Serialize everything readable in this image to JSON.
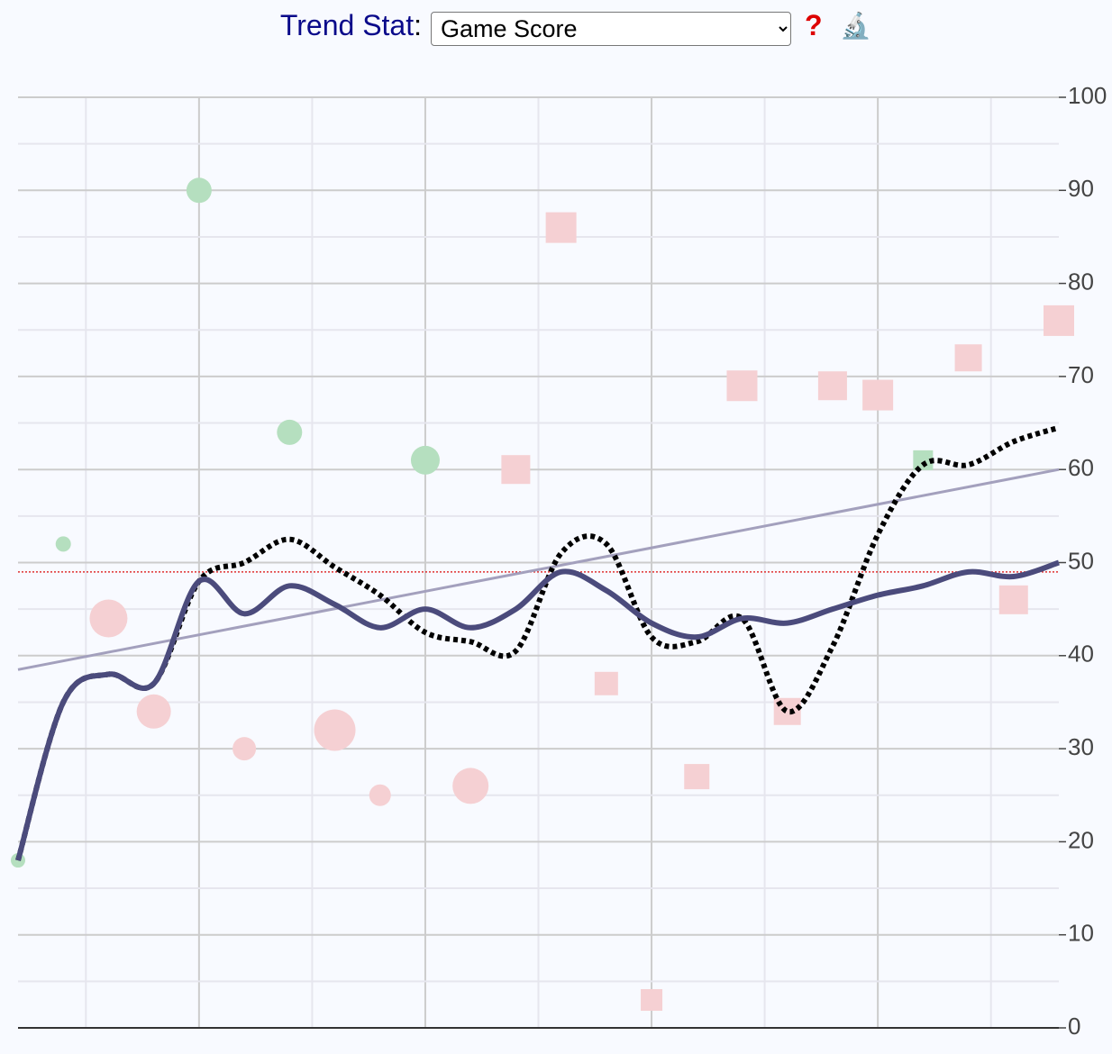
{
  "header": {
    "label": "Trend Stat",
    "colon": ":",
    "select": "Game Score",
    "help": "?",
    "icon": "🔬"
  },
  "chart_data": {
    "type": "scatter",
    "x": [
      1,
      2,
      3,
      4,
      5,
      6,
      7,
      8,
      9,
      10,
      11,
      12,
      13,
      14,
      15,
      16,
      17,
      18,
      19,
      20,
      21,
      22,
      23,
      24
    ],
    "xlim": [
      1,
      24
    ],
    "values": [
      18,
      52,
      44,
      34,
      90,
      30,
      64,
      32,
      25,
      61,
      26,
      60,
      86,
      37,
      3,
      27,
      69,
      34,
      69,
      68,
      61,
      72,
      46,
      76
    ],
    "sizes": [
      8,
      8.5,
      21,
      19,
      14,
      13,
      14,
      23,
      12,
      16,
      20,
      16,
      17,
      13,
      12,
      14,
      17,
      15,
      16,
      17,
      11,
      15,
      16,
      17
    ],
    "shapes": [
      "circle",
      "circle",
      "circle",
      "circle",
      "circle",
      "circle",
      "circle",
      "circle",
      "circle",
      "circle",
      "circle",
      "square",
      "square",
      "square",
      "square",
      "square",
      "square",
      "square",
      "square",
      "square",
      "square",
      "square",
      "square",
      "square"
    ],
    "colors": [
      "#b5dfbf",
      "#b5dfbf",
      "#f5d0d3",
      "#f5d0d3",
      "#b5dfbf",
      "#f5d0d3",
      "#b5dfbf",
      "#f5d0d3",
      "#f5d0d3",
      "#b5dfbf",
      "#f5d0d3",
      "#f5d0d3",
      "#f5d0d3",
      "#f5d0d3",
      "#f5d0d3",
      "#f5d0d3",
      "#f5d0d3",
      "#f5d0d3",
      "#f5d0d3",
      "#f5d0d3",
      "#b5dfbf",
      "#f5d0d3",
      "#f5d0d3",
      "#f5d0d3"
    ],
    "lines": [
      {
        "values": [
          18,
          35,
          38,
          37,
          48,
          44.5,
          47.5,
          45.5,
          43,
          45,
          43,
          45,
          49,
          47,
          43.5,
          42,
          44,
          43.5,
          45,
          46.5,
          47.5,
          49,
          48.5,
          50
        ],
        "color": "#4b4b7c",
        "style": "solid"
      },
      {
        "values": [
          18,
          35,
          38,
          37,
          48,
          50,
          52.5,
          49.5,
          46.5,
          42.5,
          41.5,
          40.5,
          51,
          52,
          42,
          41.5,
          44,
          34,
          41,
          53,
          60.5,
          60.5,
          63,
          64.5
        ],
        "color": "#000000",
        "style": "dotted"
      }
    ],
    "trend": {
      "values": [
        38.5,
        60
      ],
      "color": "#a3a0bd"
    },
    "average": {
      "value": 49,
      "color": "#e03030"
    },
    "ylim": [
      0,
      100
    ],
    "yticks": [
      0,
      10,
      20,
      30,
      40,
      50,
      60,
      70,
      80,
      90,
      100
    ],
    "grid": true
  }
}
